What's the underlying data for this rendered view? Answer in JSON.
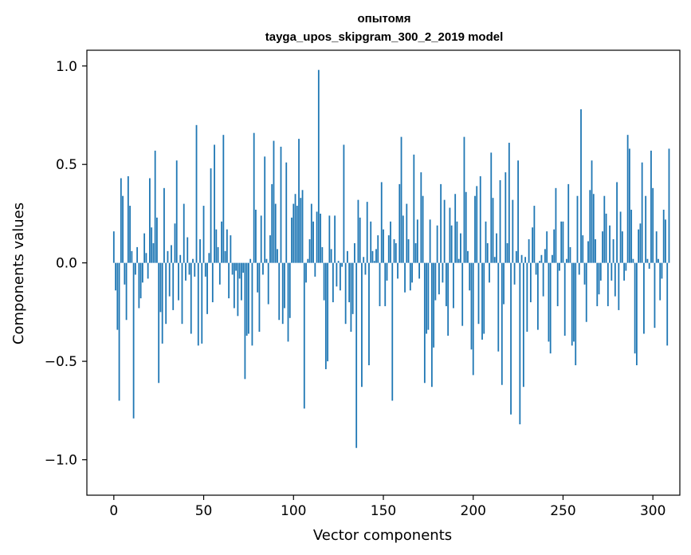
{
  "chart_data": {
    "type": "bar",
    "title": "опытомя",
    "subtitle": "tayga_upos_skipgram_300_2_2019 model",
    "xlabel": "Vector components",
    "ylabel": "Components values",
    "xlim": [
      -15,
      315
    ],
    "ylim": [
      -1.18,
      1.08
    ],
    "xticks": [
      0,
      50,
      100,
      150,
      200,
      250,
      300
    ],
    "xtick_labels": [
      "0",
      "50",
      "100",
      "150",
      "200",
      "250",
      "300"
    ],
    "yticks": [
      -1.0,
      -0.5,
      0.0,
      0.5,
      1.0
    ],
    "ytick_labels": [
      "−1.0",
      "−0.5",
      "0.0",
      "0.5",
      "1.0"
    ],
    "bar_color": "#1f77b4",
    "grid": false,
    "legend": "none",
    "values": [
      0.16,
      -0.14,
      -0.34,
      -0.7,
      0.43,
      0.34,
      -0.11,
      -0.29,
      0.44,
      0.29,
      0.06,
      -0.79,
      -0.06,
      0.08,
      -0.23,
      -0.18,
      -0.1,
      0.15,
      0.05,
      -0.08,
      0.43,
      0.18,
      0.1,
      0.57,
      0.23,
      -0.61,
      -0.25,
      -0.41,
      0.38,
      -0.31,
      0.06,
      -0.17,
      0.09,
      -0.24,
      0.2,
      0.52,
      -0.19,
      0.04,
      -0.31,
      0.3,
      -0.09,
      0.13,
      -0.06,
      -0.36,
      0.02,
      -0.07,
      0.7,
      -0.42,
      0.12,
      -0.41,
      0.29,
      -0.07,
      -0.26,
      0.05,
      0.48,
      -0.2,
      0.6,
      0.17,
      0.08,
      -0.11,
      0.21,
      0.65,
      0.06,
      0.17,
      -0.18,
      0.14,
      -0.06,
      -0.23,
      -0.04,
      -0.27,
      -0.08,
      -0.19,
      -0.05,
      -0.59,
      -0.37,
      -0.36,
      0.02,
      -0.42,
      0.66,
      0.27,
      -0.15,
      -0.35,
      0.24,
      -0.06,
      0.54,
      0.02,
      -0.21,
      0.14,
      0.4,
      0.62,
      0.3,
      0.07,
      -0.29,
      0.59,
      -0.31,
      -0.23,
      0.51,
      -0.4,
      -0.28,
      0.23,
      0.3,
      0.35,
      0.29,
      0.63,
      0.33,
      0.37,
      -0.74,
      -0.1,
      0.02,
      0.12,
      0.3,
      0.21,
      -0.07,
      0.26,
      0.98,
      0.25,
      0.08,
      -0.19,
      -0.54,
      -0.5,
      0.24,
      0.07,
      -0.2,
      0.24,
      -0.12,
      0.01,
      -0.14,
      -0.02,
      0.6,
      -0.31,
      0.06,
      -0.2,
      -0.35,
      -0.26,
      0.1,
      -0.94,
      0.32,
      0.23,
      -0.63,
      0.03,
      -0.06,
      0.31,
      -0.52,
      0.21,
      0.06,
      0.01,
      0.07,
      0.14,
      -0.22,
      0.41,
      0.17,
      -0.22,
      -0.09,
      0.14,
      0.21,
      -0.7,
      0.12,
      0.1,
      -0.08,
      0.4,
      0.64,
      0.24,
      -0.15,
      0.3,
      0.12,
      -0.14,
      -0.1,
      0.55,
      0.1,
      0.22,
      -0.08,
      0.46,
      0.34,
      -0.61,
      -0.36,
      -0.34,
      0.22,
      -0.63,
      -0.43,
      -0.19,
      0.19,
      -0.16,
      0.4,
      -0.1,
      0.32,
      -0.22,
      -0.37,
      0.28,
      0.19,
      -0.23,
      0.35,
      0.21,
      0.02,
      0.15,
      -0.32,
      0.64,
      0.36,
      0.06,
      -0.14,
      -0.44,
      -0.57,
      0.34,
      0.39,
      -0.31,
      0.44,
      -0.39,
      -0.36,
      0.21,
      0.1,
      -0.1,
      0.56,
      0.33,
      0.03,
      0.15,
      -0.45,
      0.42,
      -0.62,
      -0.21,
      0.46,
      0.1,
      0.61,
      -0.77,
      0.32,
      -0.11,
      0.06,
      0.52,
      -0.82,
      0.04,
      -0.63,
      0.03,
      -0.35,
      0.12,
      -0.2,
      0.18,
      0.29,
      -0.06,
      -0.34,
      0.01,
      0.04,
      -0.17,
      0.07,
      0.16,
      -0.4,
      -0.46,
      0.04,
      0.17,
      0.38,
      -0.22,
      -0.04,
      0.21,
      0.21,
      -0.37,
      0.02,
      0.4,
      0.08,
      -0.42,
      -0.4,
      -0.52,
      0.34,
      -0.06,
      0.78,
      0.14,
      -0.11,
      -0.3,
      0.11,
      0.37,
      0.52,
      0.35,
      0.12,
      -0.22,
      -0.16,
      -0.09,
      0.16,
      0.34,
      0.25,
      -0.22,
      0.19,
      -0.09,
      0.12,
      -0.17,
      0.41,
      -0.24,
      0.26,
      0.16,
      -0.09,
      -0.04,
      0.65,
      0.58,
      0.27,
      0.02,
      -0.46,
      -0.52,
      0.17,
      0.2,
      0.51,
      -0.36,
      0.34,
      0.02,
      -0.03,
      0.57,
      0.38,
      -0.33,
      0.16,
      0.02,
      -0.19,
      -0.08,
      0.27,
      0.22,
      -0.42,
      0.58
    ]
  }
}
